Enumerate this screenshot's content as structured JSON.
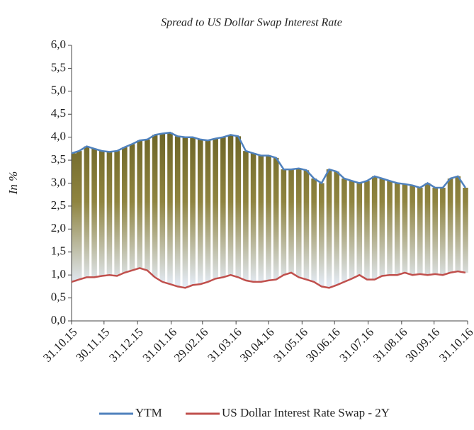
{
  "chart_data": {
    "type": "line",
    "title": "Spread to US Dollar Swap Interest Rate",
    "y_label": "In %",
    "x": [
      "2015-10-31",
      "2015-11-07",
      "2015-11-14",
      "2015-11-21",
      "2015-11-28",
      "2015-12-05",
      "2015-12-12",
      "2015-12-19",
      "2015-12-26",
      "2016-01-02",
      "2016-01-09",
      "2016-01-16",
      "2016-01-23",
      "2016-01-30",
      "2016-02-06",
      "2016-02-13",
      "2016-02-20",
      "2016-02-27",
      "2016-03-05",
      "2016-03-12",
      "2016-03-19",
      "2016-03-26",
      "2016-04-02",
      "2016-04-09",
      "2016-04-16",
      "2016-04-23",
      "2016-04-30",
      "2016-05-07",
      "2016-05-14",
      "2016-05-21",
      "2016-05-28",
      "2016-06-04",
      "2016-06-11",
      "2016-06-18",
      "2016-06-25",
      "2016-07-02",
      "2016-07-09",
      "2016-07-16",
      "2016-07-23",
      "2016-07-30",
      "2016-08-06",
      "2016-08-13",
      "2016-08-20",
      "2016-08-27",
      "2016-09-03",
      "2016-09-10",
      "2016-09-17",
      "2016-09-24",
      "2016-10-01",
      "2016-10-08",
      "2016-10-15",
      "2016-10-22",
      "2016-10-29"
    ],
    "series": [
      {
        "name": "YTM",
        "color": "#4f81bd",
        "values": [
          3.65,
          3.7,
          3.8,
          3.75,
          3.7,
          3.68,
          3.7,
          3.78,
          3.85,
          3.93,
          3.95,
          4.05,
          4.08,
          4.1,
          4.02,
          4.0,
          4.0,
          3.95,
          3.93,
          3.97,
          4.0,
          4.05,
          4.02,
          3.7,
          3.65,
          3.6,
          3.6,
          3.55,
          3.3,
          3.3,
          3.32,
          3.28,
          3.1,
          3.0,
          3.3,
          3.25,
          3.1,
          3.05,
          3.0,
          3.05,
          3.15,
          3.1,
          3.05,
          3.0,
          2.98,
          2.95,
          2.9,
          3.0,
          2.9,
          2.9,
          3.1,
          3.15,
          2.9
        ]
      },
      {
        "name": "US Dollar Interest Rate Swap - 2Y",
        "color": "#c0504d",
        "values": [
          0.85,
          0.9,
          0.95,
          0.95,
          0.98,
          1.0,
          0.98,
          1.05,
          1.1,
          1.15,
          1.1,
          0.95,
          0.85,
          0.8,
          0.75,
          0.72,
          0.78,
          0.8,
          0.85,
          0.92,
          0.95,
          1.0,
          0.95,
          0.88,
          0.85,
          0.85,
          0.88,
          0.9,
          1.0,
          1.05,
          0.95,
          0.9,
          0.85,
          0.75,
          0.72,
          0.78,
          0.85,
          0.92,
          1.0,
          0.9,
          0.9,
          0.98,
          1.0,
          1.0,
          1.05,
          1.0,
          1.02,
          1.0,
          1.02,
          1.0,
          1.05,
          1.08,
          1.05
        ]
      }
    ],
    "xlim": [
      "2015-10-31",
      "2016-10-31"
    ],
    "xticks": [
      {
        "value": "2015-10-31",
        "label": "31.10.15"
      },
      {
        "value": "2015-11-30",
        "label": "30.11.15"
      },
      {
        "value": "2015-12-31",
        "label": "31.12.15"
      },
      {
        "value": "2016-01-31",
        "label": "31.01.16"
      },
      {
        "value": "2016-02-29",
        "label": "29.02.16"
      },
      {
        "value": "2016-03-31",
        "label": "31.03.16"
      },
      {
        "value": "2016-04-30",
        "label": "30.04.16"
      },
      {
        "value": "2016-05-31",
        "label": "31.05.16"
      },
      {
        "value": "2016-06-30",
        "label": "30.06.16"
      },
      {
        "value": "2016-07-31",
        "label": "31.07.16"
      },
      {
        "value": "2016-08-31",
        "label": "31.08.16"
      },
      {
        "value": "2016-09-30",
        "label": "30.09.16"
      },
      {
        "value": "2016-10-31",
        "label": "31.10.16"
      }
    ],
    "ylim": [
      0,
      6
    ],
    "yticks": [
      {
        "value": 0,
        "label": "0,0"
      },
      {
        "value": 0.5,
        "label": "0,5"
      },
      {
        "value": 1,
        "label": "1,0"
      },
      {
        "value": 1.5,
        "label": "1,5"
      },
      {
        "value": 2,
        "label": "2,0"
      },
      {
        "value": 2.5,
        "label": "2,5"
      },
      {
        "value": 3,
        "label": "3,0"
      },
      {
        "value": 3.5,
        "label": "3,5"
      },
      {
        "value": 4,
        "label": "4,0"
      },
      {
        "value": 4.5,
        "label": "4,5"
      },
      {
        "value": 5,
        "label": "5,0"
      },
      {
        "value": 5.5,
        "label": "5,5"
      },
      {
        "value": 6,
        "label": "6,0"
      }
    ],
    "grid": false,
    "legend": "bottom"
  }
}
